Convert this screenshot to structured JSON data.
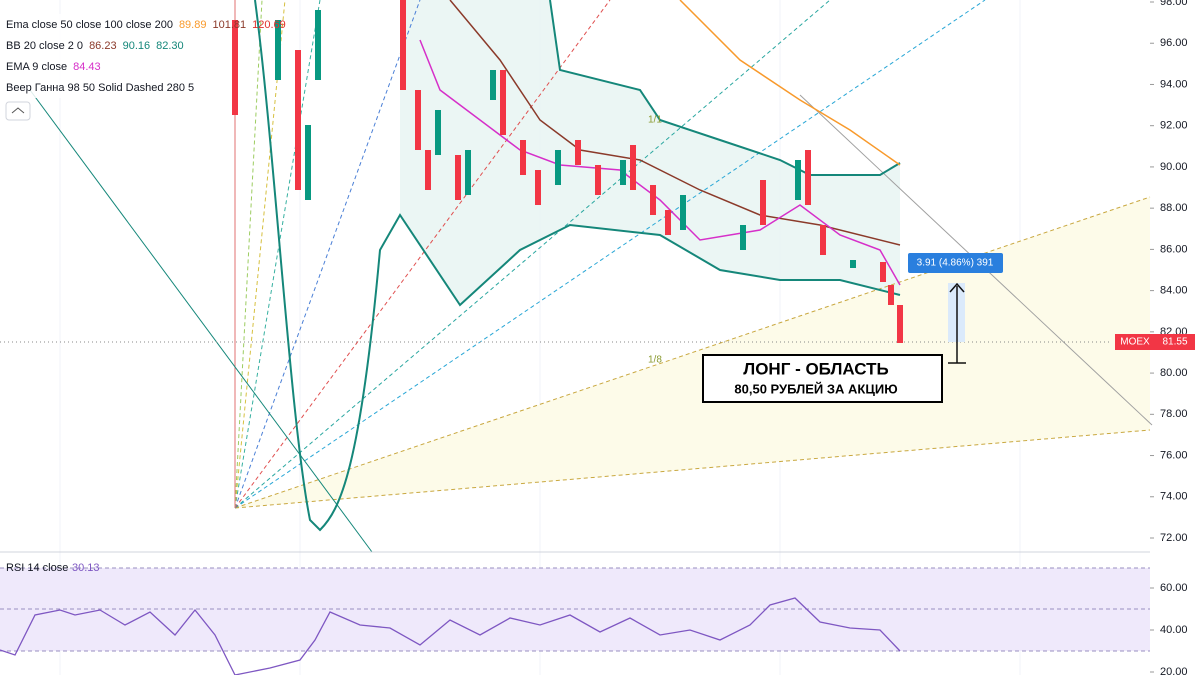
{
  "legend": [
    {
      "title": "Ema close 50 close 100 close 200",
      "values": [
        {
          "text": "89.89",
          "color": "#f89a2c"
        },
        {
          "text": "101.81",
          "color": "#8b3a2a"
        },
        {
          "text": "120.69",
          "color": "#e0302c"
        }
      ]
    },
    {
      "title": "BB 20 close 2 0",
      "values": [
        {
          "text": "86.23",
          "color": "#8b3a2a"
        },
        {
          "text": "90.16",
          "color": "#15877a"
        },
        {
          "text": "82.30",
          "color": "#15877a"
        }
      ]
    },
    {
      "title": "EMA 9 close",
      "values": [
        {
          "text": "84.43",
          "color": "#d62fc9"
        }
      ]
    },
    {
      "title": "Веер Ганна 98 50 Solid Dashed 280 5",
      "values": []
    }
  ],
  "price_axis": {
    "ticks": [
      {
        "value": 98,
        "label": "98.00"
      },
      {
        "value": 96,
        "label": "96.00"
      },
      {
        "value": 94,
        "label": "94.00"
      },
      {
        "value": 92,
        "label": "92.00"
      },
      {
        "value": 90,
        "label": "90.00"
      },
      {
        "value": 88,
        "label": "88.00"
      },
      {
        "value": 86,
        "label": "86.00"
      },
      {
        "value": 84,
        "label": "84.00"
      },
      {
        "value": 82,
        "label": "82.00"
      },
      {
        "value": 80,
        "label": "80.00"
      },
      {
        "value": 78,
        "label": "78.00"
      },
      {
        "value": 76,
        "label": "76.00"
      },
      {
        "value": 74,
        "label": "74.00"
      },
      {
        "value": 72,
        "label": "72.00"
      }
    ]
  },
  "price_tag": {
    "symbol": "MOEX",
    "price": "81.55"
  },
  "measure_label": "3.91 (4.86%) 391",
  "fan_labels": [
    "1/1",
    "1/8"
  ],
  "annotation": {
    "line1": "ЛОНГ - ОБЛАСТЬ",
    "line2": "80,50 РУБЛЕЙ ЗА АКЦИЮ"
  },
  "rsi": {
    "title": "RSI 14 close",
    "value": "30.13",
    "ticks": [
      {
        "value": 60,
        "label": "60.00"
      },
      {
        "value": 40,
        "label": "40.00"
      },
      {
        "value": 20,
        "label": "20.00"
      }
    ]
  }
}
